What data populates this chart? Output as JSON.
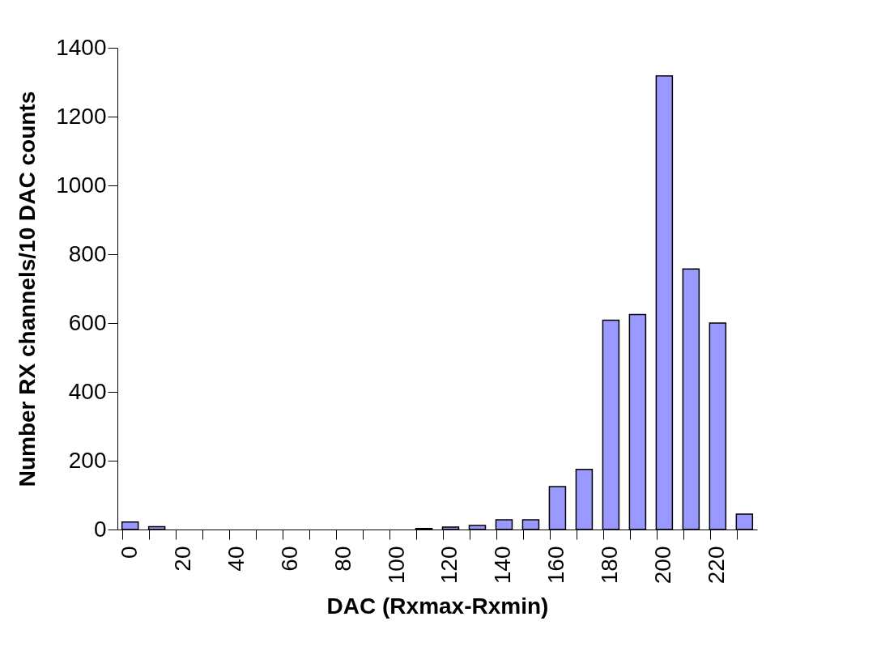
{
  "chart_data": {
    "type": "bar",
    "xlabel": "DAC (Rxmax-Rxmin)",
    "ylabel": "Number RX channels/10 DAC counts",
    "categories": [
      "0",
      null,
      "20",
      null,
      "40",
      null,
      "60",
      null,
      "80",
      null,
      "100",
      null,
      "120",
      null,
      "140",
      null,
      "160",
      null,
      "180",
      null,
      "200",
      null,
      "220",
      null
    ],
    "values": [
      22,
      8,
      0,
      0,
      0,
      0,
      0,
      0,
      0,
      0,
      0,
      3,
      7,
      12,
      28,
      28,
      125,
      175,
      608,
      625,
      1318,
      757,
      600,
      45
    ],
    "color": "#9999ff",
    "ylim": [
      0,
      1400
    ],
    "yticks": [
      0,
      200,
      400,
      600,
      800,
      1000,
      1200,
      1400
    ],
    "grid": false
  }
}
